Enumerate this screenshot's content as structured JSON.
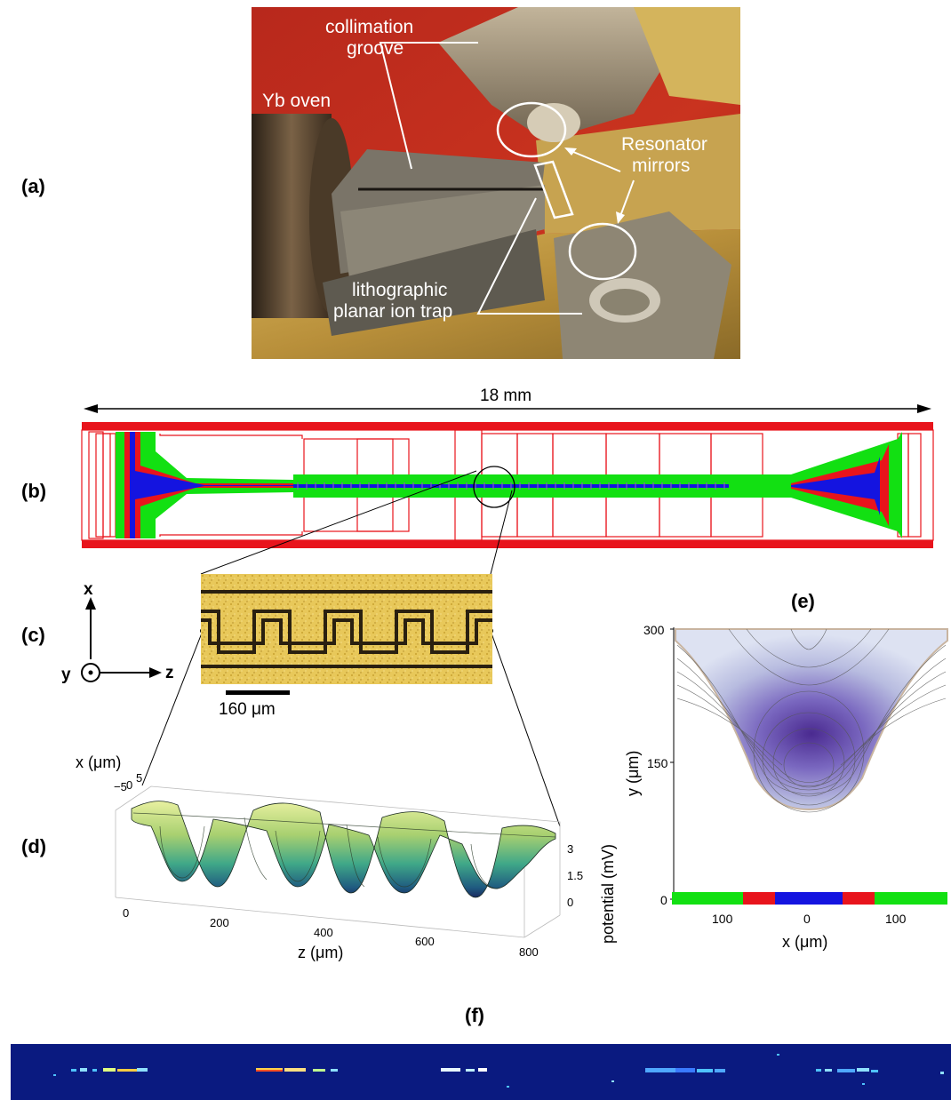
{
  "panels": {
    "a": "(a)",
    "b": "(b)",
    "c": "(c)",
    "d": "(d)",
    "e": "(e)",
    "f": "(f)"
  },
  "photo": {
    "collimation": [
      "collimation",
      "groove"
    ],
    "oven": "Yb oven",
    "mirrors": [
      "Resonator",
      "mirrors"
    ],
    "trap": [
      "lithographic",
      "planar ion trap"
    ]
  },
  "layout_b": {
    "width_label": "18 mm",
    "colors": {
      "outline": "#e8141c",
      "rf": "#12e012",
      "ground": "#1414e0"
    }
  },
  "micrograph": {
    "scale_label": "160 μm",
    "axes": {
      "x": "x",
      "y": "y",
      "z": "z"
    }
  },
  "surface_d": {
    "x_label": "x (μm)",
    "x_ticks": [
      "−5",
      "0",
      "5"
    ],
    "z_label": "z (μm)",
    "z_ticks": [
      "0",
      "200",
      "400",
      "600",
      "800"
    ],
    "v_label": "potential (mV)",
    "v_ticks": [
      "3",
      "1.5",
      "0"
    ]
  },
  "contour_e": {
    "y_label": "y (μm)",
    "y_ticks": [
      "300",
      "150",
      "0"
    ],
    "x_label": "x (μm)",
    "x_ticks": [
      "100",
      "0",
      "100"
    ]
  },
  "fluorescence": {
    "background": "#0a1a80"
  }
}
